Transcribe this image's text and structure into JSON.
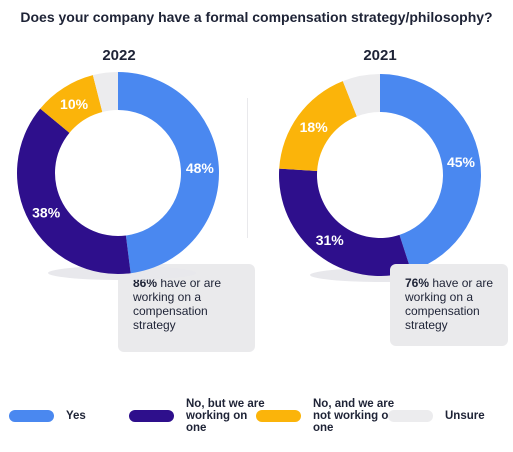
{
  "chart_data": {
    "type": "pie",
    "title": "Does your company have a formal compensation strategy/philosophy?",
    "categories": [
      "Yes",
      "No, but we are working on one",
      "No, and we are not working on one",
      "Unsure"
    ],
    "colors": [
      "#4a88f0",
      "#2e0f8c",
      "#fbb40a",
      "#ececee"
    ],
    "charts": [
      {
        "year": "2022",
        "values": [
          48,
          38,
          10,
          4
        ],
        "labels": [
          "48%",
          "38%",
          "10%",
          ""
        ],
        "note_bold": "86%",
        "note_text": " have or are working on a compensation strategy"
      },
      {
        "year": "2021",
        "values": [
          45,
          31,
          18,
          6
        ],
        "labels": [
          "45%",
          "31%",
          "18%",
          ""
        ],
        "note_bold": "76%",
        "note_text": " have or are working on a compensation strategy"
      }
    ]
  }
}
